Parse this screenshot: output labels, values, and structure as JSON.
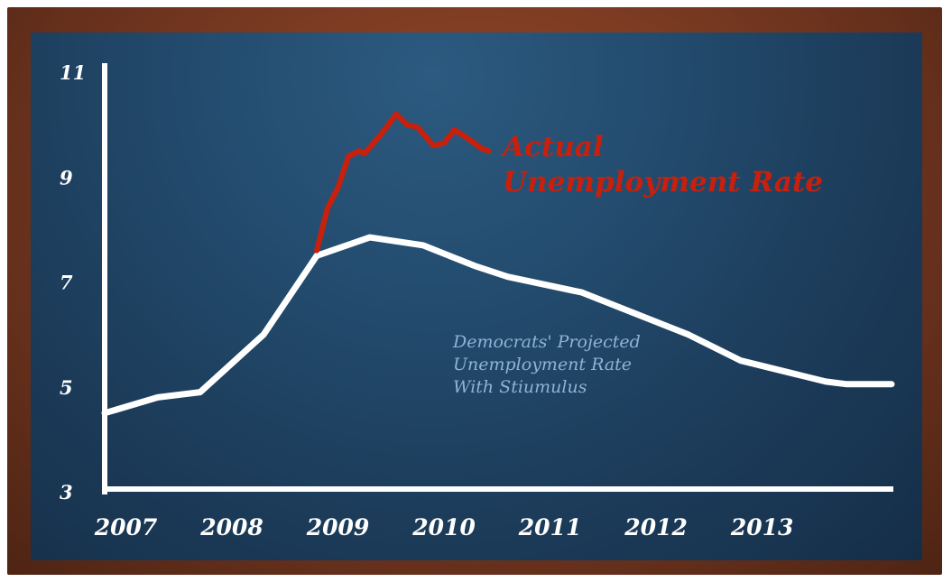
{
  "chart_data": {
    "type": "line",
    "title": "",
    "xlabel": "",
    "ylabel": "",
    "ylim": [
      3,
      11
    ],
    "xlim": [
      2007.0,
      2014.0
    ],
    "y_ticks": [
      "3",
      "5",
      "7",
      "9",
      "11"
    ],
    "x_ticks": [
      {
        "label": "2007",
        "x": 2007.2
      },
      {
        "label": "2008",
        "x": 2008.2
      },
      {
        "label": "2009",
        "x": 2009.2
      },
      {
        "label": "2010",
        "x": 2010.2
      },
      {
        "label": "2011",
        "x": 2011.2
      },
      {
        "label": "2012",
        "x": 2012.2
      },
      {
        "label": "2013",
        "x": 2013.2
      }
    ],
    "grid": false,
    "series": [
      {
        "name": "Democrats' Projected Unemployment Rate With Stiumulus",
        "color": "#ffffff",
        "points": [
          [
            2007.0,
            4.5
          ],
          [
            2007.5,
            4.8
          ],
          [
            2007.9,
            4.9
          ],
          [
            2008.5,
            6.0
          ],
          [
            2009.0,
            7.5
          ],
          [
            2009.5,
            7.85
          ],
          [
            2010.0,
            7.7
          ],
          [
            2010.5,
            7.3
          ],
          [
            2010.8,
            7.1
          ],
          [
            2011.5,
            6.8
          ],
          [
            2012.0,
            6.4
          ],
          [
            2012.5,
            6.0
          ],
          [
            2013.0,
            5.5
          ],
          [
            2013.5,
            5.25
          ],
          [
            2013.8,
            5.1
          ],
          [
            2014.0,
            5.05
          ],
          [
            2014.5,
            5.05
          ]
        ]
      },
      {
        "name": "Actual Unemployment Rate",
        "color": "#c8200c",
        "points": [
          [
            2009.0,
            7.6
          ],
          [
            2009.1,
            8.4
          ],
          [
            2009.2,
            8.8
          ],
          [
            2009.3,
            9.4
          ],
          [
            2009.4,
            9.5
          ],
          [
            2009.45,
            9.45
          ],
          [
            2009.6,
            9.8
          ],
          [
            2009.75,
            10.2
          ],
          [
            2009.85,
            10.0
          ],
          [
            2009.95,
            9.95
          ],
          [
            2010.1,
            9.6
          ],
          [
            2010.2,
            9.65
          ],
          [
            2010.3,
            9.9
          ],
          [
            2010.45,
            9.7
          ],
          [
            2010.55,
            9.55
          ],
          [
            2010.62,
            9.5
          ]
        ]
      }
    ],
    "annotations": {
      "actual_line1": "Actual",
      "actual_line2": "Unemployment Rate",
      "projected_line1": "Democrats' Projected",
      "projected_line2": "Unemployment Rate",
      "projected_line3": "With Stiumulus"
    }
  }
}
